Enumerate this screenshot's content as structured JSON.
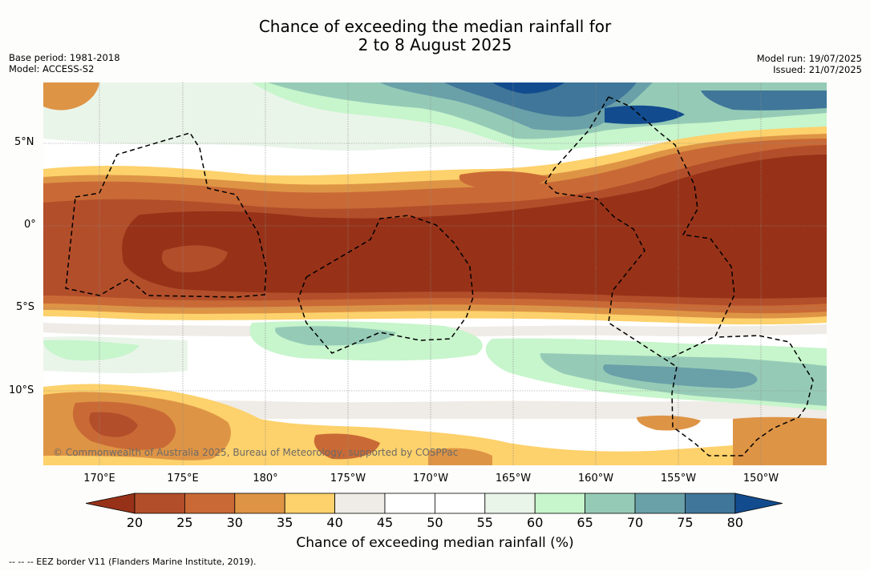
{
  "title": {
    "line1": "Chance of exceeding the median rainfall for",
    "line2": "2 to 8 August 2025"
  },
  "meta_left": {
    "base_period": "Base period: 1981-2018",
    "model": "Model: ACCESS-S2"
  },
  "meta_right": {
    "model_run": "Model run: 19/07/2025",
    "issued": "Issued: 21/07/2025"
  },
  "lat_labels": [
    "5°N",
    "0°",
    "5°S",
    "10°S"
  ],
  "lon_labels": [
    "170°E",
    "175°E",
    "180°",
    "175°W",
    "170°W",
    "165°W",
    "160°W",
    "155°W",
    "150°W"
  ],
  "credit": "© Commonwealth of Australia 2025, Bureau of Meteorology, supported by COSPPac",
  "colorbar": {
    "ticks": [
      "20",
      "25",
      "30",
      "35",
      "40",
      "45",
      "50",
      "55",
      "60",
      "65",
      "70",
      "75",
      "80"
    ],
    "colors": [
      "#973218",
      "#b34e2a",
      "#c96a36",
      "#de9445",
      "#fdd16b",
      "#efebe6",
      "#ffffff",
      "#ffffff",
      "#eaf5ea",
      "#c7f5cc",
      "#95cbb6",
      "#6aa0a8",
      "#3f7699",
      "#124c8e"
    ],
    "title": "Chance of exceeding median rainfall (%)"
  },
  "eez_note": "--  --  -- EEZ border V11 (Flanders Marine Institute, 2019)."
}
